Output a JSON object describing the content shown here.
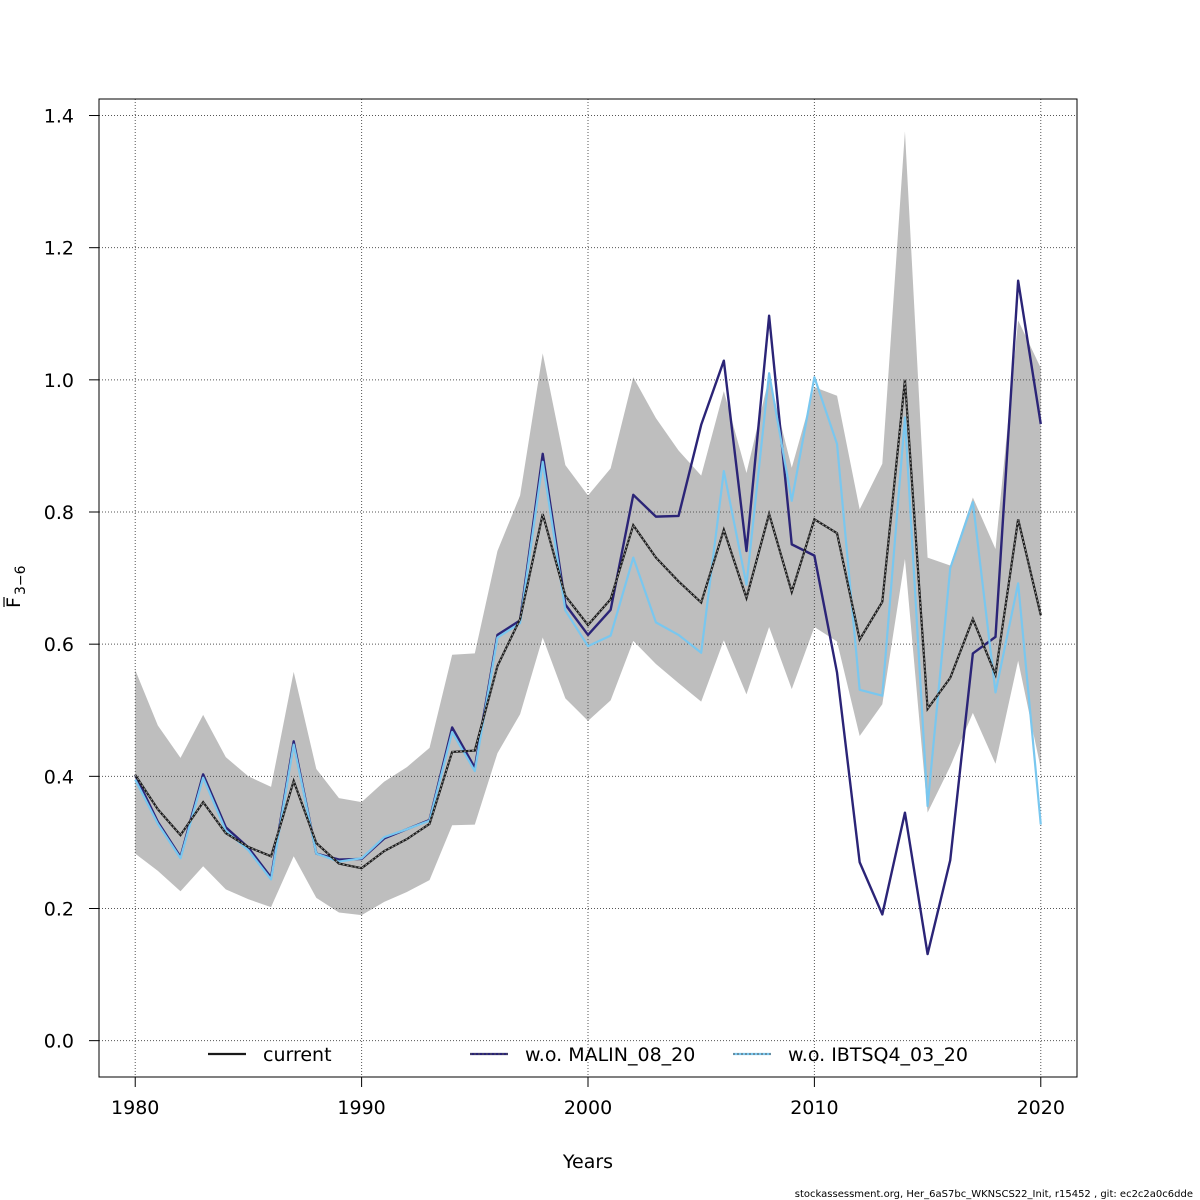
{
  "chart_data": {
    "type": "line",
    "xlabel": "Years",
    "ylabel_main": "F",
    "ylabel_sub": "3−6",
    "xlim": [
      1978.4,
      2021.6
    ],
    "ylim": [
      -0.055,
      1.425
    ],
    "x_ticks": [
      1980,
      1990,
      2000,
      2010,
      2020
    ],
    "y_ticks": [
      0.0,
      0.2,
      0.4,
      0.6,
      0.8,
      1.0,
      1.2,
      1.4
    ],
    "y_tick_labels": [
      "0.0",
      "0.2",
      "0.4",
      "0.6",
      "0.8",
      "1.0",
      "1.2",
      "1.4"
    ],
    "grid": true,
    "legend_position": "bottom",
    "x": [
      1980,
      1981,
      1982,
      1983,
      1984,
      1985,
      1986,
      1987,
      1988,
      1989,
      1990,
      1991,
      1992,
      1993,
      1994,
      1995,
      1996,
      1997,
      1998,
      1999,
      2000,
      2001,
      2002,
      2003,
      2004,
      2005,
      2006,
      2007,
      2008,
      2009,
      2010,
      2011,
      2012,
      2013,
      2014,
      2015,
      2016,
      2017,
      2018,
      2019,
      2020
    ],
    "band": {
      "lower": [
        0.283,
        0.257,
        0.226,
        0.264,
        0.229,
        0.214,
        0.202,
        0.279,
        0.216,
        0.194,
        0.19,
        0.21,
        0.225,
        0.243,
        0.326,
        0.327,
        0.435,
        0.494,
        0.61,
        0.518,
        0.484,
        0.515,
        0.605,
        0.57,
        0.541,
        0.513,
        0.606,
        0.524,
        0.626,
        0.532,
        0.626,
        0.604,
        0.461,
        0.509,
        0.729,
        0.345,
        0.415,
        0.496,
        0.419,
        0.575,
        0.412
      ],
      "upper": [
        0.561,
        0.477,
        0.428,
        0.493,
        0.429,
        0.4,
        0.384,
        0.558,
        0.411,
        0.367,
        0.361,
        0.392,
        0.414,
        0.443,
        0.584,
        0.586,
        0.741,
        0.825,
        1.04,
        0.871,
        0.825,
        0.866,
        1.004,
        0.942,
        0.893,
        0.855,
        0.983,
        0.859,
        1.004,
        0.867,
        0.989,
        0.976,
        0.804,
        0.873,
        1.376,
        0.731,
        0.719,
        0.822,
        0.744,
        1.09,
        1.018
      ]
    },
    "series": [
      {
        "name": "current",
        "color": "#1a1a1a",
        "values": [
          0.402,
          0.35,
          0.311,
          0.361,
          0.314,
          0.293,
          0.279,
          0.393,
          0.299,
          0.268,
          0.261,
          0.287,
          0.305,
          0.328,
          0.437,
          0.439,
          0.567,
          0.638,
          0.797,
          0.673,
          0.629,
          0.668,
          0.78,
          0.731,
          0.695,
          0.663,
          0.773,
          0.67,
          0.797,
          0.679,
          0.789,
          0.768,
          0.607,
          0.664,
          1.0,
          0.502,
          0.549,
          0.638,
          0.554,
          0.789,
          0.644
        ]
      },
      {
        "name": "w.o. MALIN_08_20",
        "color": "#2b2477",
        "values": [
          0.402,
          0.331,
          0.278,
          0.403,
          0.323,
          0.292,
          0.247,
          0.453,
          0.283,
          0.274,
          0.275,
          0.306,
          0.32,
          0.334,
          0.474,
          0.413,
          0.614,
          0.636,
          0.888,
          0.66,
          0.614,
          0.652,
          0.826,
          0.793,
          0.794,
          0.932,
          1.029,
          0.741,
          1.097,
          0.751,
          0.734,
          0.557,
          0.27,
          0.191,
          0.345,
          0.131,
          0.273,
          0.586,
          0.611,
          1.15,
          0.933
        ]
      },
      {
        "name": "w.o. IBTSQ4_03_20",
        "color": "#79c7ef",
        "values": [
          0.395,
          0.328,
          0.276,
          0.398,
          0.318,
          0.288,
          0.244,
          0.448,
          0.283,
          0.271,
          0.276,
          0.308,
          0.32,
          0.333,
          0.467,
          0.408,
          0.61,
          0.632,
          0.876,
          0.651,
          0.597,
          0.613,
          0.731,
          0.633,
          0.614,
          0.587,
          0.862,
          0.69,
          1.01,
          0.817,
          1.004,
          0.903,
          0.531,
          0.522,
          0.943,
          0.355,
          0.715,
          0.815,
          0.527,
          0.692,
          0.327
        ]
      }
    ]
  },
  "footer_text": "stockassessment.org, Her_6aS7bc_WKNSCS22_Init, r15452 , git: ec2c2a0c6dde"
}
